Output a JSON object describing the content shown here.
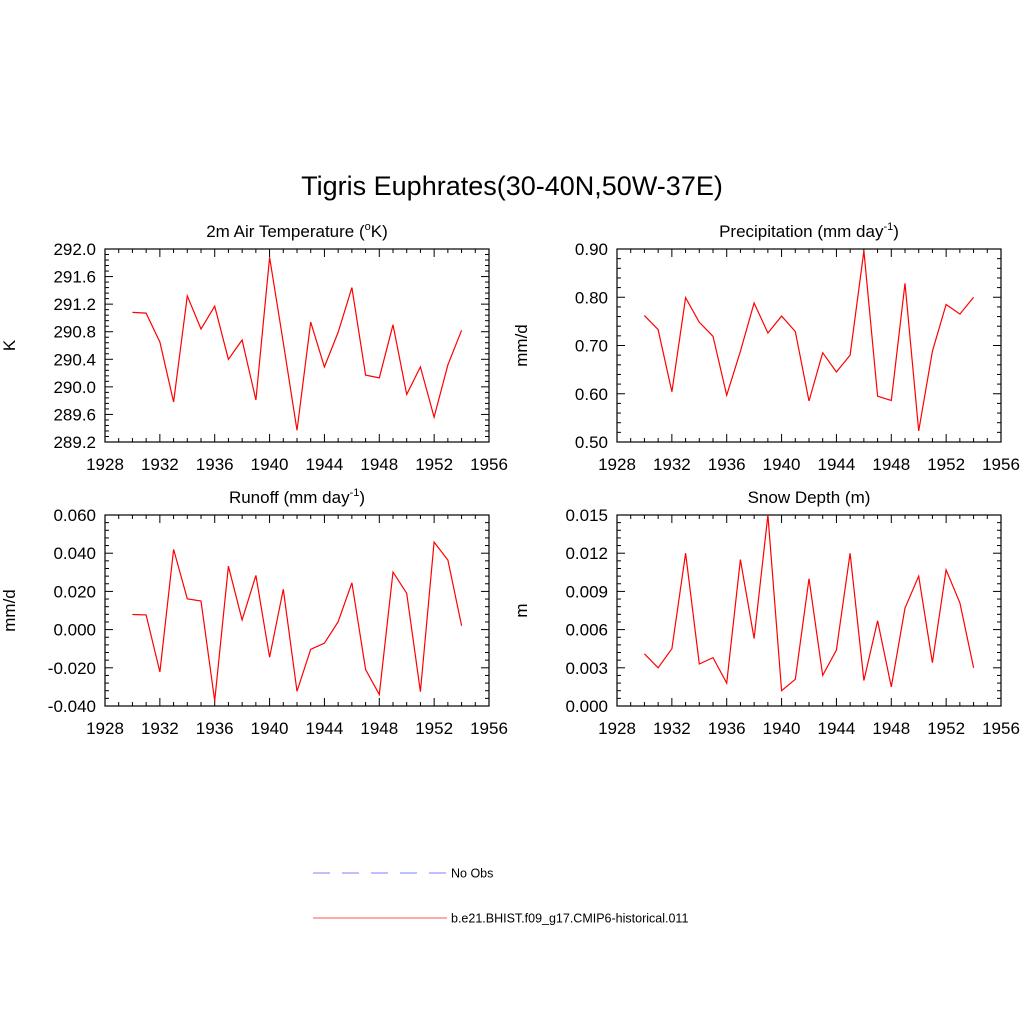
{
  "figure": {
    "title": "Tigris Euphrates(30-40N,50W-37E)"
  },
  "legend": {
    "entries": [
      {
        "label": "No Obs",
        "color": "#9999ff",
        "style": "dashed"
      },
      {
        "label": "b.e21.BHIST.f09_g17.CMIP6-historical.011",
        "color": "#ff3333",
        "style": "solid"
      }
    ]
  },
  "chart_data": [
    {
      "type": "line",
      "title_main": "2m Air Temperature (",
      "title_sup": "o",
      "title_tail": "K)",
      "ylabel": "K",
      "xlim": [
        1928,
        1956
      ],
      "ylim": [
        289.2,
        292.0
      ],
      "xticks": [
        "1928",
        "1932",
        "1936",
        "1940",
        "1944",
        "1948",
        "1952",
        "1956"
      ],
      "yticks": [
        "289.2",
        "289.6",
        "290.0",
        "290.4",
        "290.8",
        "291.2",
        "291.6",
        "292.0"
      ],
      "x": [
        1930,
        1931,
        1932,
        1933,
        1934,
        1935,
        1936,
        1937,
        1938,
        1939,
        1940,
        1941,
        1942,
        1943,
        1944,
        1945,
        1946,
        1947,
        1948,
        1949,
        1950,
        1951,
        1952,
        1953,
        1954
      ],
      "series": [
        {
          "color": "#ff0000",
          "values": [
            291.08,
            291.07,
            290.65,
            289.78,
            291.32,
            290.84,
            291.17,
            290.4,
            290.68,
            289.81,
            291.88,
            290.64,
            289.37,
            290.94,
            290.29,
            290.79,
            291.44,
            290.17,
            290.13,
            290.9,
            289.89,
            290.29,
            289.56,
            290.32,
            290.82
          ]
        }
      ]
    },
    {
      "type": "line",
      "title_main": "Precipitation (mm day",
      "title_sup": "-1",
      "title_tail": ")",
      "ylabel": "mm/d",
      "xlim": [
        1928,
        1956
      ],
      "ylim": [
        0.5,
        0.9
      ],
      "xticks": [
        "1928",
        "1932",
        "1936",
        "1940",
        "1944",
        "1948",
        "1952",
        "1956"
      ],
      "yticks": [
        "0.50",
        "0.60",
        "0.70",
        "0.80",
        "0.90"
      ],
      "x": [
        1930,
        1931,
        1932,
        1933,
        1934,
        1935,
        1936,
        1937,
        1938,
        1939,
        1940,
        1941,
        1942,
        1943,
        1944,
        1945,
        1946,
        1947,
        1948,
        1949,
        1950,
        1951,
        1952,
        1953,
        1954
      ],
      "series": [
        {
          "color": "#ff0000",
          "values": [
            0.762,
            0.733,
            0.604,
            0.799,
            0.748,
            0.719,
            0.597,
            0.688,
            0.788,
            0.726,
            0.761,
            0.729,
            0.585,
            0.685,
            0.645,
            0.68,
            0.896,
            0.595,
            0.586,
            0.829,
            0.523,
            0.688,
            0.785,
            0.765,
            0.8
          ]
        }
      ]
    },
    {
      "type": "line",
      "title_main": "Runoff (mm day",
      "title_sup": "-1",
      "title_tail": ")",
      "ylabel": "mm/d",
      "xlim": [
        1928,
        1956
      ],
      "ylim": [
        -0.04,
        0.06
      ],
      "xticks": [
        "1928",
        "1932",
        "1936",
        "1940",
        "1944",
        "1948",
        "1952",
        "1956"
      ],
      "yticks": [
        "-0.040",
        "-0.020",
        "0.000",
        "0.020",
        "0.040",
        "0.060"
      ],
      "x": [
        1930,
        1931,
        1932,
        1933,
        1934,
        1935,
        1936,
        1937,
        1938,
        1939,
        1940,
        1941,
        1942,
        1943,
        1944,
        1945,
        1946,
        1947,
        1948,
        1949,
        1950,
        1951,
        1952,
        1953,
        1954
      ],
      "series": [
        {
          "color": "#ff0000",
          "values": [
            0.0079,
            0.0077,
            -0.0222,
            0.042,
            0.0161,
            0.015,
            -0.0373,
            0.0332,
            0.0051,
            0.0284,
            -0.0145,
            0.0211,
            -0.0323,
            -0.0103,
            -0.0071,
            0.0041,
            0.0245,
            -0.0209,
            -0.034,
            0.0301,
            0.019,
            -0.0325,
            0.0458,
            0.0364,
            0.002
          ]
        }
      ]
    },
    {
      "type": "line",
      "title_main": "Snow Depth (m)",
      "title_sup": "",
      "title_tail": "",
      "ylabel": "m",
      "xlim": [
        1928,
        1956
      ],
      "ylim": [
        0.0,
        0.015
      ],
      "xticks": [
        "1928",
        "1932",
        "1936",
        "1940",
        "1944",
        "1948",
        "1952",
        "1956"
      ],
      "yticks": [
        "0.000",
        "0.003",
        "0.006",
        "0.009",
        "0.012",
        "0.015"
      ],
      "x": [
        1930,
        1931,
        1932,
        1933,
        1934,
        1935,
        1936,
        1937,
        1938,
        1939,
        1940,
        1941,
        1942,
        1943,
        1944,
        1945,
        1946,
        1947,
        1948,
        1949,
        1950,
        1951,
        1952,
        1953,
        1954
      ],
      "series": [
        {
          "color": "#ff0000",
          "values": [
            0.0041,
            0.003,
            0.0045,
            0.012,
            0.0033,
            0.0038,
            0.0018,
            0.0115,
            0.0053,
            0.015,
            0.0012,
            0.0021,
            0.01,
            0.0024,
            0.0044,
            0.012,
            0.002,
            0.0067,
            0.0015,
            0.0077,
            0.0102,
            0.0034,
            0.0107,
            0.0081,
            0.003
          ]
        }
      ]
    }
  ]
}
